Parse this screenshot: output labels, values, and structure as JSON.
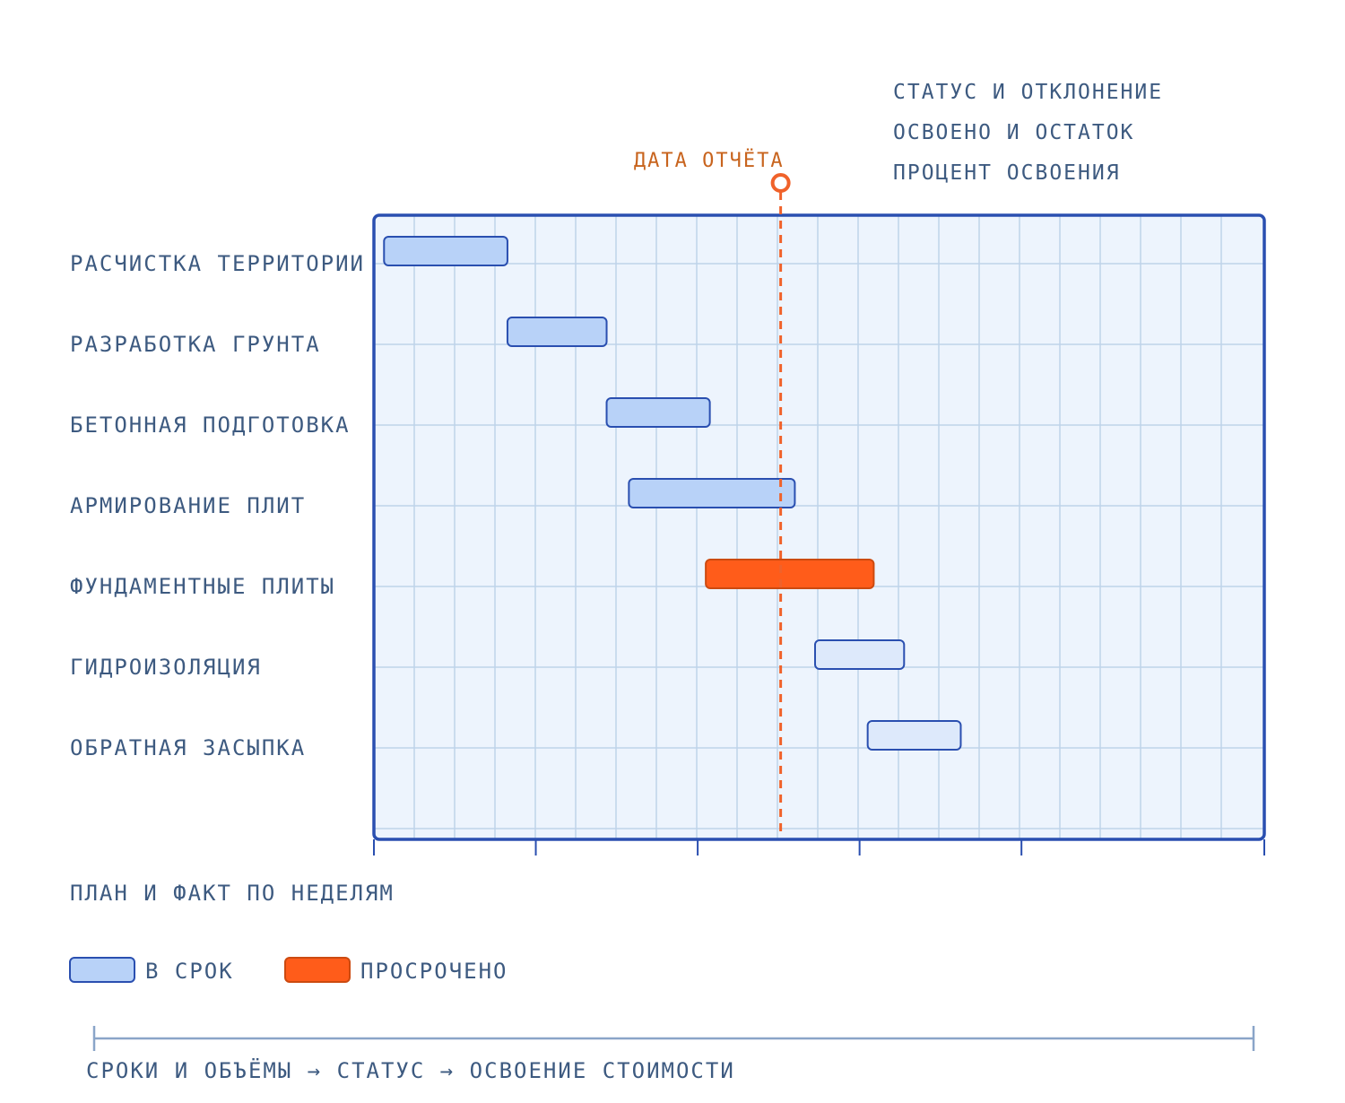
{
  "header": {
    "lines": [
      "СТАТУС И ОТКЛОНЕНИЕ",
      "ОСВОЕНО И ОСТАТОК",
      "ПРОЦЕНТ ОСВОЕНИЯ"
    ]
  },
  "report_marker": {
    "label": "ДАТА ОТЧЁТА",
    "week": 10.05
  },
  "x_axis_caption": "ПЛАН И ФАКТ ПО НЕДЕЛЯМ",
  "legend": {
    "on_time": "В СРОК",
    "overdue": "ПРОСРОЧЕНО"
  },
  "footer": {
    "caption": "СРОКИ И ОБЪЁМЫ → СТАТУС → ОСВОЕНИЕ СТОИМОСТИ"
  },
  "colors": {
    "frame": "#2a4fb0",
    "plot_bg": "#edf4fd",
    "grid": "#bed3ea",
    "bar_done": "#b8d2f8",
    "bar_future": "#dde9fb",
    "bar_stroke": "#2a4fb0",
    "overdue": "#ff5c1a",
    "overdue_stroke": "#cc4a10",
    "marker": "#f0622a",
    "text": "#3d5a80"
  },
  "chart_data": {
    "type": "gantt",
    "x_unit": "week",
    "xlim": [
      0,
      22
    ],
    "major_ticks": [
      0,
      4,
      8,
      12,
      16,
      22
    ],
    "report_week": 10.05,
    "tasks": [
      {
        "name": "РАСЧИСТКА ТЕРРИТОРИИ",
        "start": 0.25,
        "end": 3.3,
        "status": "done"
      },
      {
        "name": "РАЗРАБОТКА ГРУНТА",
        "start": 3.3,
        "end": 5.75,
        "status": "done"
      },
      {
        "name": "БЕТОННАЯ ПОДГОТОВКА",
        "start": 5.75,
        "end": 8.3,
        "status": "done"
      },
      {
        "name": "АРМИРОВАНИЕ ПЛИТ",
        "start": 6.3,
        "end": 10.4,
        "status": "done"
      },
      {
        "name": "ФУНДАМЕНТНЫЕ ПЛИТЫ",
        "start": 8.2,
        "end": 12.35,
        "status": "overdue"
      },
      {
        "name": "ГИДРОИЗОЛЯЦИЯ",
        "start": 10.9,
        "end": 13.1,
        "status": "planned"
      },
      {
        "name": "ОБРАТНАЯ ЗАСЫПКА",
        "start": 12.2,
        "end": 14.5,
        "status": "planned"
      }
    ]
  }
}
